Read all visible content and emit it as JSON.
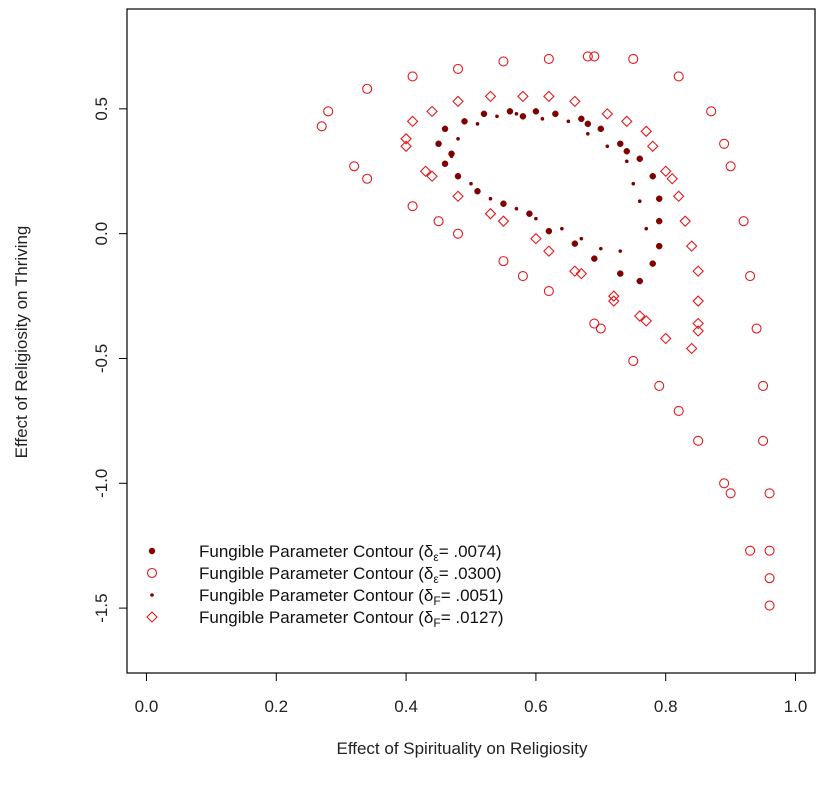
{
  "chart_data": {
    "type": "scatter",
    "xlabel": "Effect of Spirituality on Religiosity",
    "ylabel": "Effect of Religiosity on Thriving",
    "xlim": [
      -0.03,
      1.03
    ],
    "ylim": [
      -1.76,
      0.9
    ],
    "xticks": [
      0.0,
      0.2,
      0.4,
      0.6,
      0.8,
      1.0
    ],
    "xtick_labels": [
      "0.0",
      "0.2",
      "0.4",
      "0.6",
      "0.8",
      "1.0"
    ],
    "yticks": [
      -1.5,
      -1.0,
      -0.5,
      0.0,
      0.5
    ],
    "ytick_labels": [
      "-1.5",
      "-1.0",
      "-0.5",
      "0.0",
      "0.5"
    ],
    "grid": false,
    "legend_position": "bottom-left",
    "color": "#e31a1c",
    "dark_color": "#800000",
    "series": [
      {
        "name_prefix": "Fungible Parameter Contour (δ",
        "name_sub": "ε",
        "name_suffix": "= .0074)",
        "marker": "filled-circle",
        "points": [
          [
            0.45,
            0.36
          ],
          [
            0.46,
            0.28
          ],
          [
            0.46,
            0.42
          ],
          [
            0.48,
            0.23
          ],
          [
            0.49,
            0.45
          ],
          [
            0.51,
            0.17
          ],
          [
            0.52,
            0.48
          ],
          [
            0.55,
            0.12
          ],
          [
            0.56,
            0.49
          ],
          [
            0.59,
            0.08
          ],
          [
            0.6,
            0.49
          ],
          [
            0.62,
            0.01
          ],
          [
            0.63,
            0.48
          ],
          [
            0.66,
            -0.04
          ],
          [
            0.67,
            0.46
          ],
          [
            0.69,
            -0.1
          ],
          [
            0.7,
            0.42
          ],
          [
            0.73,
            -0.16
          ],
          [
            0.73,
            0.36
          ],
          [
            0.76,
            -0.19
          ],
          [
            0.76,
            0.3
          ],
          [
            0.78,
            -0.12
          ],
          [
            0.78,
            0.23
          ],
          [
            0.79,
            -0.05
          ],
          [
            0.79,
            0.14
          ],
          [
            0.79,
            0.05
          ],
          [
            0.47,
            0.32
          ],
          [
            0.58,
            0.47
          ],
          [
            0.68,
            0.44
          ],
          [
            0.74,
            0.33
          ]
        ]
      },
      {
        "name_prefix": "Fungible Parameter Contour (δ",
        "name_sub": "ε",
        "name_suffix": "= .0300)",
        "marker": "open-circle",
        "points": [
          [
            0.27,
            0.43
          ],
          [
            0.28,
            0.49
          ],
          [
            0.32,
            0.27
          ],
          [
            0.34,
            0.58
          ],
          [
            0.34,
            0.22
          ],
          [
            0.41,
            0.63
          ],
          [
            0.41,
            0.11
          ],
          [
            0.45,
            0.05
          ],
          [
            0.48,
            0.66
          ],
          [
            0.48,
            0.0
          ],
          [
            0.55,
            0.69
          ],
          [
            0.55,
            -0.11
          ],
          [
            0.58,
            -0.17
          ],
          [
            0.62,
            0.7
          ],
          [
            0.62,
            -0.23
          ],
          [
            0.68,
            0.71
          ],
          [
            0.69,
            0.71
          ],
          [
            0.69,
            -0.36
          ],
          [
            0.7,
            -0.38
          ],
          [
            0.75,
            0.7
          ],
          [
            0.75,
            -0.51
          ],
          [
            0.79,
            -0.61
          ],
          [
            0.82,
            0.63
          ],
          [
            0.82,
            -0.71
          ],
          [
            0.85,
            -0.83
          ],
          [
            0.87,
            0.49
          ],
          [
            0.89,
            0.36
          ],
          [
            0.89,
            -1.0
          ],
          [
            0.9,
            0.27
          ],
          [
            0.9,
            -1.04
          ],
          [
            0.92,
            0.05
          ],
          [
            0.93,
            -0.17
          ],
          [
            0.93,
            -1.27
          ],
          [
            0.94,
            -0.38
          ],
          [
            0.95,
            -0.61
          ],
          [
            0.95,
            -0.83
          ],
          [
            0.96,
            -1.04
          ],
          [
            0.96,
            -1.27
          ],
          [
            0.96,
            -1.38
          ],
          [
            0.96,
            -1.49
          ]
        ]
      },
      {
        "name_prefix": "Fungible Parameter Contour (δ",
        "name_sub": "F",
        "name_suffix": "= .0051)",
        "marker": "small-dot",
        "points": [
          [
            0.47,
            0.31
          ],
          [
            0.48,
            0.38
          ],
          [
            0.5,
            0.2
          ],
          [
            0.51,
            0.44
          ],
          [
            0.53,
            0.14
          ],
          [
            0.54,
            0.47
          ],
          [
            0.57,
            0.1
          ],
          [
            0.57,
            0.48
          ],
          [
            0.6,
            0.06
          ],
          [
            0.61,
            0.46
          ],
          [
            0.64,
            0.02
          ],
          [
            0.65,
            0.45
          ],
          [
            0.67,
            -0.02
          ],
          [
            0.68,
            0.4
          ],
          [
            0.7,
            -0.06
          ],
          [
            0.71,
            0.35
          ],
          [
            0.73,
            -0.07
          ],
          [
            0.74,
            0.29
          ],
          [
            0.75,
            0.2
          ],
          [
            0.76,
            0.13
          ],
          [
            0.77,
            0.02
          ]
        ]
      },
      {
        "name_prefix": "Fungible Parameter Contour (δ",
        "name_sub": "F",
        "name_suffix": "= .0127)",
        "marker": "open-diamond",
        "points": [
          [
            0.4,
            0.38
          ],
          [
            0.4,
            0.35
          ],
          [
            0.41,
            0.45
          ],
          [
            0.43,
            0.25
          ],
          [
            0.44,
            0.23
          ],
          [
            0.44,
            0.49
          ],
          [
            0.48,
            0.15
          ],
          [
            0.48,
            0.53
          ],
          [
            0.53,
            0.08
          ],
          [
            0.53,
            0.55
          ],
          [
            0.55,
            0.05
          ],
          [
            0.58,
            0.55
          ],
          [
            0.6,
            -0.02
          ],
          [
            0.62,
            0.55
          ],
          [
            0.62,
            -0.07
          ],
          [
            0.66,
            0.53
          ],
          [
            0.66,
            -0.15
          ],
          [
            0.67,
            -0.16
          ],
          [
            0.71,
            0.48
          ],
          [
            0.72,
            -0.25
          ],
          [
            0.72,
            -0.27
          ],
          [
            0.74,
            0.45
          ],
          [
            0.76,
            -0.33
          ],
          [
            0.77,
            0.41
          ],
          [
            0.77,
            -0.35
          ],
          [
            0.78,
            0.35
          ],
          [
            0.8,
            0.25
          ],
          [
            0.81,
            0.22
          ],
          [
            0.8,
            -0.42
          ],
          [
            0.82,
            0.15
          ],
          [
            0.83,
            0.05
          ],
          [
            0.84,
            -0.05
          ],
          [
            0.84,
            -0.46
          ],
          [
            0.85,
            -0.15
          ],
          [
            0.85,
            -0.27
          ],
          [
            0.85,
            -0.36
          ],
          [
            0.85,
            -0.39
          ]
        ]
      }
    ]
  }
}
